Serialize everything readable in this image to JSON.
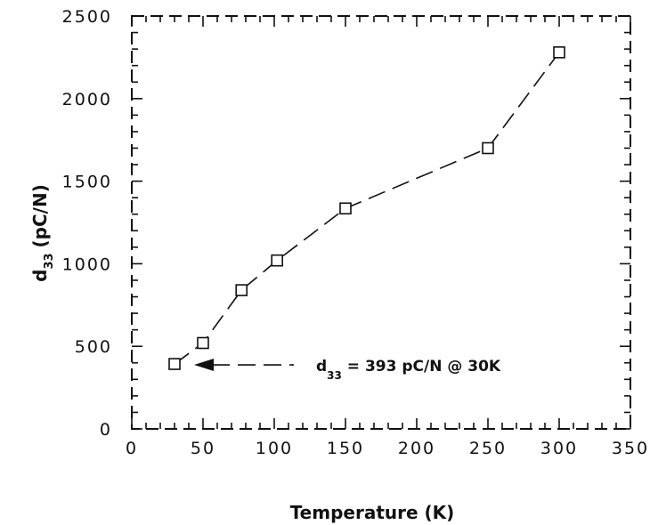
{
  "chart_data": {
    "type": "line",
    "x": [
      30,
      50,
      77,
      102,
      150,
      250,
      300
    ],
    "y": [
      393,
      520,
      840,
      1020,
      1335,
      1700,
      2280
    ],
    "xlabel": "Temperature (K)",
    "ylabel": {
      "main": "d",
      "sub": "33",
      "unit": "(pC/N)"
    },
    "xlim": [
      0,
      350
    ],
    "ylim": [
      0,
      2500
    ],
    "xticks": [
      0,
      50,
      100,
      150,
      200,
      250,
      300,
      350
    ],
    "yticks": [
      0,
      500,
      1000,
      1500,
      2000,
      2500
    ],
    "marker": "open-square",
    "line_style": "dashed",
    "grid": false,
    "annotation": {
      "main": "d",
      "sub": "33",
      "rest": " = 393 pC/N @ 30K",
      "points_to": {
        "x": 30,
        "y": 393
      }
    }
  }
}
